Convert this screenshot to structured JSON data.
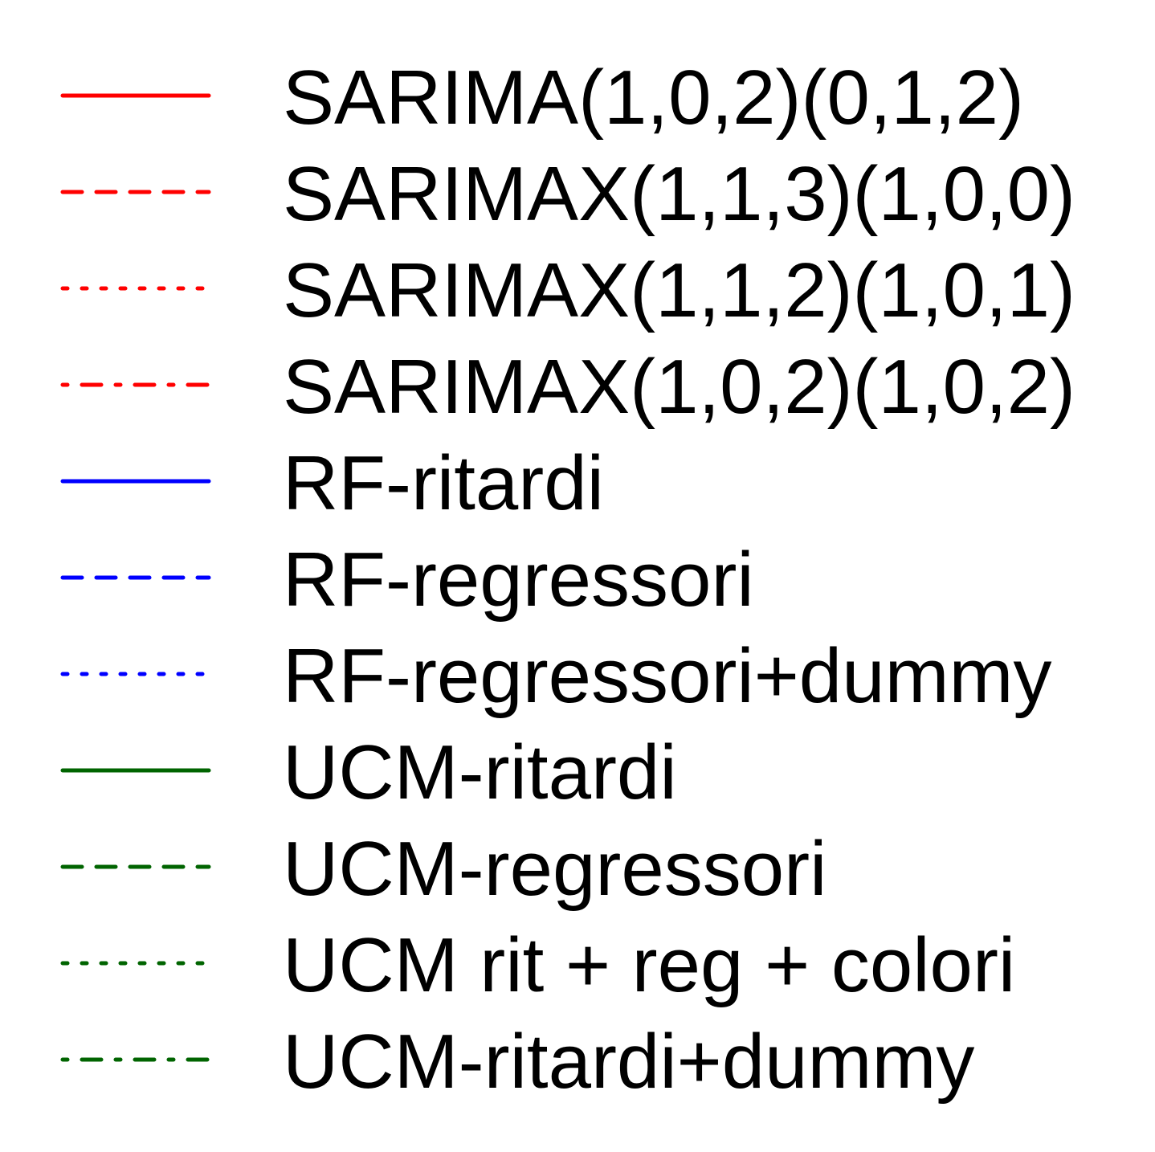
{
  "chart_data": {
    "type": "line",
    "legend_position": "full-panel",
    "series": [
      {
        "name": "SARIMA(1,0,2)(0,1,2)",
        "color": "#ff0000",
        "line_style": "solid"
      },
      {
        "name": "SARIMAX(1,1,3)(1,0,0)",
        "color": "#ff0000",
        "line_style": "dashed"
      },
      {
        "name": "SARIMAX(1,1,2)(1,0,1)",
        "color": "#ff0000",
        "line_style": "dotted"
      },
      {
        "name": "SARIMAX(1,0,2)(1,0,2)",
        "color": "#ff0000",
        "line_style": "dotdash"
      },
      {
        "name": "RF-ritardi",
        "color": "#0000ff",
        "line_style": "solid"
      },
      {
        "name": "RF-regressori",
        "color": "#0000ff",
        "line_style": "dashed"
      },
      {
        "name": "RF-regressori+dummy",
        "color": "#0000ff",
        "line_style": "dotted"
      },
      {
        "name": "UCM-ritardi",
        "color": "#006400",
        "line_style": "solid"
      },
      {
        "name": "UCM-regressori",
        "color": "#006400",
        "line_style": "dashed"
      },
      {
        "name": "UCM rit + reg + colori",
        "color": "#006400",
        "line_style": "dotted"
      },
      {
        "name": "UCM-ritardi+dummy",
        "color": "#006400",
        "line_style": "dotdash"
      }
    ]
  }
}
